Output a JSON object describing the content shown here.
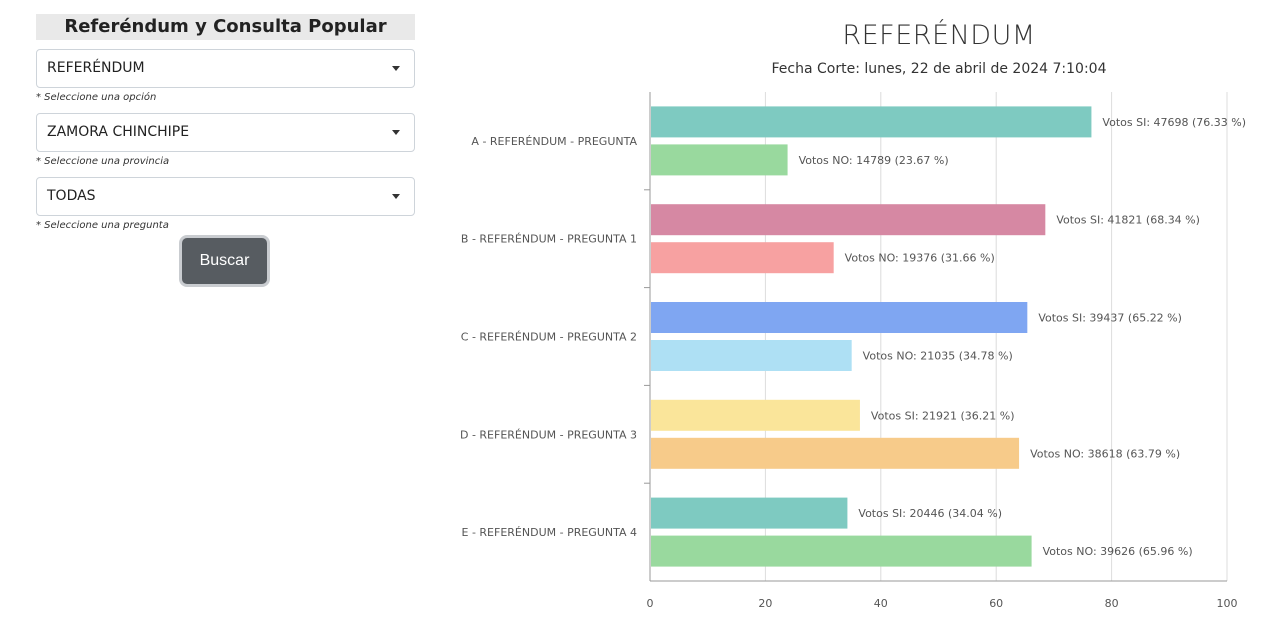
{
  "sidebar": {
    "title": "Referéndum y Consulta Popular",
    "selects": [
      {
        "value": "REFERÉNDUM",
        "hint": "* Seleccione una opción"
      },
      {
        "value": "ZAMORA CHINCHIPE",
        "hint": "* Seleccione una provincia"
      },
      {
        "value": "TODAS",
        "hint": "* Seleccione una pregunta"
      }
    ],
    "search_button": "Buscar"
  },
  "chart_data": {
    "type": "bar",
    "orientation": "horizontal",
    "title": "REFERÉNDUM",
    "subtitle": "Fecha Corte: lunes, 22 de abril de 2024 7:10:04",
    "xlim": [
      0,
      100
    ],
    "xticks": [
      0,
      20,
      40,
      60,
      80,
      100
    ],
    "grid": true,
    "categories": [
      "A - REFERÉNDUM - PREGUNTA",
      "B - REFERÉNDUM - PREGUNTA 1",
      "C - REFERÉNDUM - PREGUNTA 2",
      "D - REFERÉNDUM - PREGUNTA 3",
      "E - REFERÉNDUM - PREGUNTA 4"
    ],
    "bars": [
      [
        {
          "value": 76.33,
          "label": "Votos SI: 47698 (76.33 %)",
          "color": "#7ecac1"
        },
        {
          "value": 23.67,
          "label": "Votos NO: 14789 (23.67 %)",
          "color": "#99d99e"
        }
      ],
      [
        {
          "value": 68.34,
          "label": "Votos SI: 41821 (68.34 %)",
          "color": "#d688a3"
        },
        {
          "value": 31.66,
          "label": "Votos NO: 19376 (31.66 %)",
          "color": "#f7a1a1"
        }
      ],
      [
        {
          "value": 65.22,
          "label": "Votos SI: 39437 (65.22 %)",
          "color": "#7fa6f2"
        },
        {
          "value": 34.78,
          "label": "Votos NO: 21035 (34.78 %)",
          "color": "#aee0f4"
        }
      ],
      [
        {
          "value": 36.21,
          "label": "Votos SI: 21921 (36.21 %)",
          "color": "#fae59a"
        },
        {
          "value": 63.79,
          "label": "Votos NO: 38618 (63.79 %)",
          "color": "#f7cb8a"
        }
      ],
      [
        {
          "value": 34.04,
          "label": "Votos SI: 20446 (34.04 %)",
          "color": "#7ecac1"
        },
        {
          "value": 65.96,
          "label": "Votos NO: 39626 (65.96 %)",
          "color": "#99d99e"
        }
      ]
    ]
  }
}
